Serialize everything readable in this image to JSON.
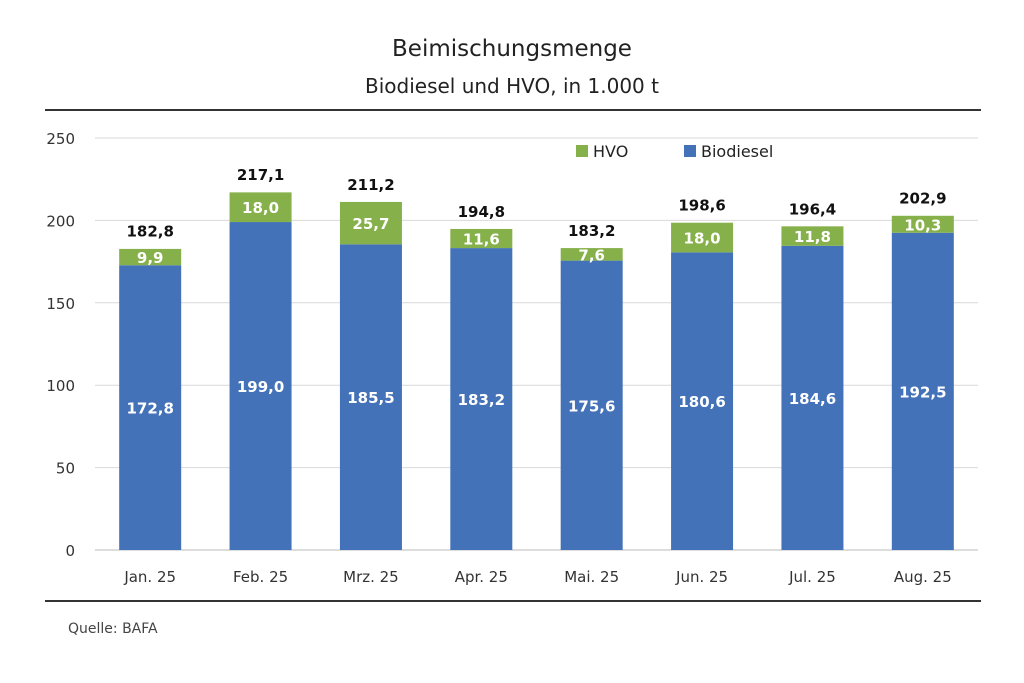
{
  "chart_data": {
    "type": "bar",
    "stacked": true,
    "title": "Beimischungsmenge",
    "subtitle": "Biodiesel und HVO, in 1.000 t",
    "categories": [
      "Jan. 25",
      "Feb. 25",
      "Mrz. 25",
      "Apr. 25",
      "Mai. 25",
      "Jun. 25",
      "Jul. 25",
      "Aug. 25"
    ],
    "series": [
      {
        "name": "Biodiesel",
        "color": "#4472b8",
        "values": [
          172.8,
          199.0,
          185.5,
          183.2,
          175.6,
          180.6,
          184.6,
          192.5
        ]
      },
      {
        "name": "HVO",
        "color": "#86b04a",
        "values": [
          9.9,
          18.0,
          25.7,
          11.6,
          7.6,
          18.0,
          11.8,
          10.3
        ]
      }
    ],
    "totals": [
      182.8,
      217.1,
      211.2,
      194.8,
      183.2,
      198.6,
      196.4,
      202.9
    ],
    "ylim": [
      0,
      250
    ],
    "yticks": [
      0,
      50,
      100,
      150,
      200,
      250
    ],
    "grid": true,
    "legend": "top-right",
    "decimal_separator": ","
  },
  "source": "Quelle: BAFA"
}
